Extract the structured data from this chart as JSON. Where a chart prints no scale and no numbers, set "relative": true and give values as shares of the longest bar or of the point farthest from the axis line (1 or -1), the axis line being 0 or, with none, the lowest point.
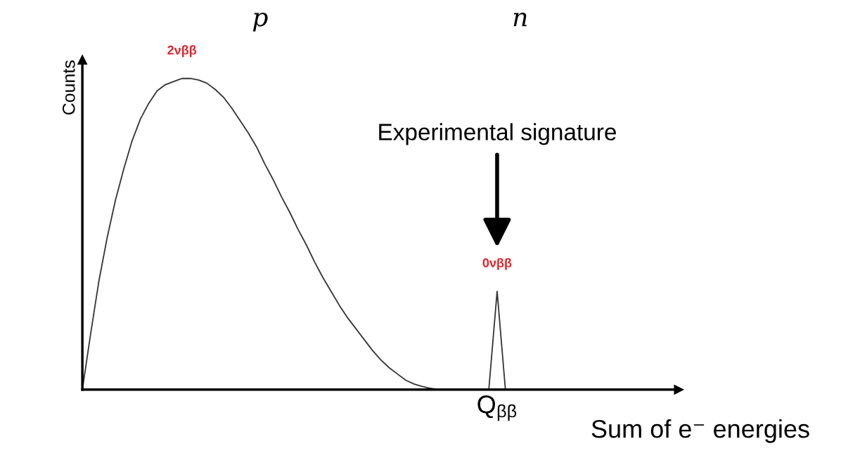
{
  "chart_data": {
    "type": "line",
    "relative": true,
    "xlabel": "Sum of e⁻ energies",
    "ylabel": "Counts",
    "categories": [
      null,
      null,
      null,
      null,
      null,
      null,
      null,
      null,
      null,
      null,
      null,
      null,
      null,
      null,
      null,
      null,
      null,
      null,
      null,
      null,
      null,
      null,
      null,
      null,
      null,
      null,
      null,
      null,
      null,
      null,
      null,
      null,
      null,
      null,
      null,
      null,
      null,
      null,
      null,
      null,
      null,
      null,
      null,
      null,
      null,
      null,
      null,
      null,
      null,
      null,
      null,
      null
    ],
    "series": [
      {
        "color": "#333333",
        "values": [
          0,
          0.18,
          0.35,
          0.49,
          0.61,
          0.71,
          0.8,
          0.87,
          0.92,
          0.96,
          0.98,
          0.99,
          1,
          1,
          0.995,
          0.985,
          0.965,
          0.94,
          0.905,
          0.865,
          0.825,
          0.78,
          0.725,
          0.675,
          0.62,
          0.57,
          0.515,
          0.465,
          0.41,
          0.36,
          0.315,
          0.27,
          0.23,
          0.195,
          0.16,
          0.125,
          0.095,
          0.07,
          0.05,
          0.03,
          0.018,
          0.01,
          0.004,
          0,
          0,
          0,
          0,
          0,
          0,
          0,
          0.316,
          0
        ]
      }
    ],
    "annotations": [
      "2νββ",
      "0νββ",
      "Experimental signature",
      "Q$_{ββ}$",
      "p",
      "n"
    ]
  }
}
